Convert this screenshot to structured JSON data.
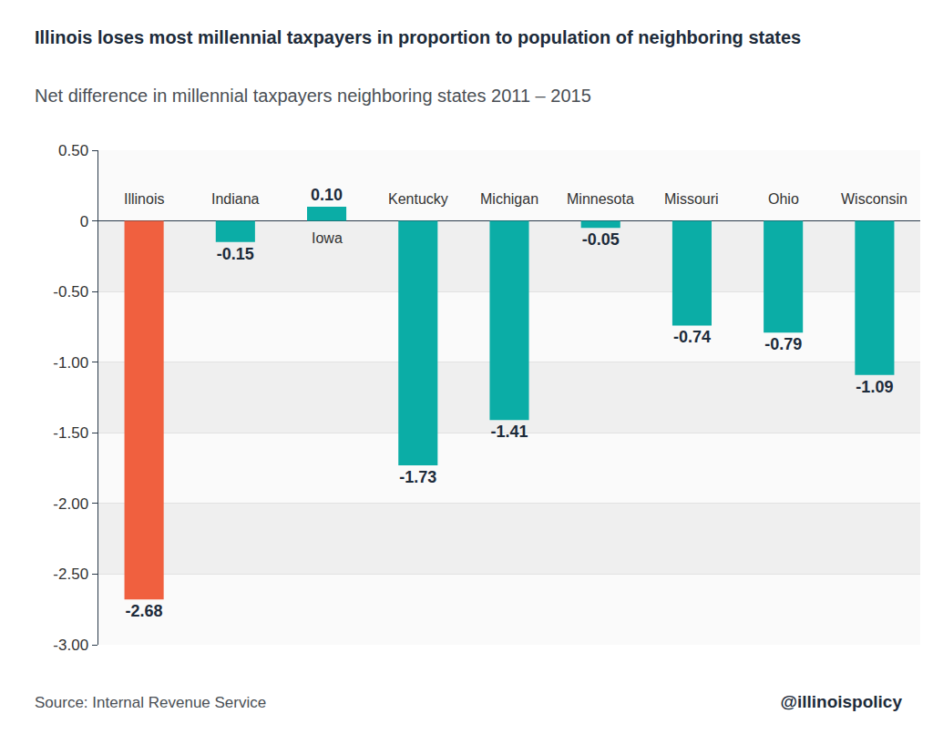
{
  "chart_data": {
    "type": "bar",
    "title": "Illinois loses most millennial taxpayers in proportion to population of neighboring states",
    "subtitle": "Net difference in millennial taxpayers neighboring states 2011 – 2015",
    "source": "Source: Internal Revenue Service",
    "credit": "@illinoispolicy",
    "categories": [
      "Illinois",
      "Indiana",
      "Iowa",
      "Kentucky",
      "Michigan",
      "Minnesota",
      "Missouri",
      "Ohio",
      "Wisconsin"
    ],
    "values": [
      -2.68,
      -0.15,
      0.1,
      -1.73,
      -1.41,
      -0.05,
      -0.74,
      -0.79,
      -1.09
    ],
    "value_labels": [
      "-2.68",
      "-0.15",
      "0.10",
      "-1.73",
      "-1.41",
      "-0.05",
      "-0.74",
      "-0.79",
      "-1.09"
    ],
    "colors": [
      "#f0603f",
      "#0bada6",
      "#0bada6",
      "#0bada6",
      "#0bada6",
      "#0bada6",
      "#0bada6",
      "#0bada6",
      "#0bada6"
    ],
    "ylim": [
      -3.0,
      0.5
    ],
    "yticks": [
      {
        "value": 0.5,
        "label": "0.50"
      },
      0,
      {
        "value": -0.5,
        "label": "-0.50"
      },
      {
        "value": -1.0,
        "label": "-1.00"
      },
      {
        "value": -1.5,
        "label": "-1.50"
      },
      {
        "value": -2.0,
        "label": "-2.00"
      },
      {
        "value": -2.5,
        "label": "-2.50"
      },
      {
        "value": -3.0,
        "label": "-3.00"
      }
    ],
    "grid": true,
    "data_labels": true
  }
}
